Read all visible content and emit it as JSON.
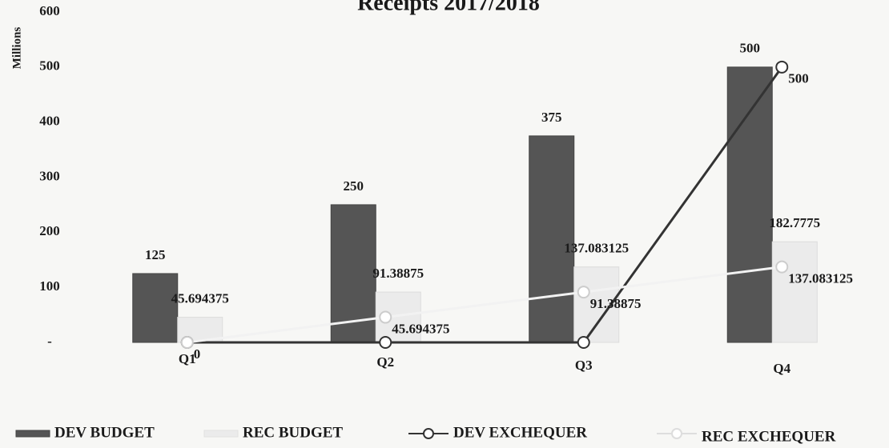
{
  "chart_data": {
    "type": "bar",
    "title": "Receipts 2017/2018",
    "y_label": "Millions",
    "categories": [
      "Q1",
      "Q2",
      "Q3",
      "Q4"
    ],
    "ylim": [
      0,
      600
    ],
    "yticks": [
      {
        "value": 0,
        "label": "-"
      },
      100,
      200,
      300,
      400,
      500,
      600
    ],
    "series": [
      {
        "name": "DEV BUDGET",
        "kind": "bar",
        "color": "#555555",
        "values": [
          125,
          250,
          375,
          500
        ]
      },
      {
        "name": "REC BUDGET",
        "kind": "bar",
        "color": "#ebebeb",
        "values": [
          45.694375,
          91.38875,
          137.083125,
          182.7775
        ]
      },
      {
        "name": "DEV EXCHEQUER",
        "kind": "line",
        "color": "#333333",
        "values": [
          0,
          0,
          0,
          500
        ],
        "value_labels": [
          "0",
          null,
          null,
          "500"
        ]
      },
      {
        "name": "REC EXCHEQUER",
        "kind": "line",
        "color": "#ffffff",
        "values": [
          0,
          45.694375,
          91.38875,
          137.083125
        ],
        "value_labels": [
          null,
          "45.694375",
          "91.38875",
          "137.083125"
        ]
      }
    ],
    "legend": "bottom"
  }
}
